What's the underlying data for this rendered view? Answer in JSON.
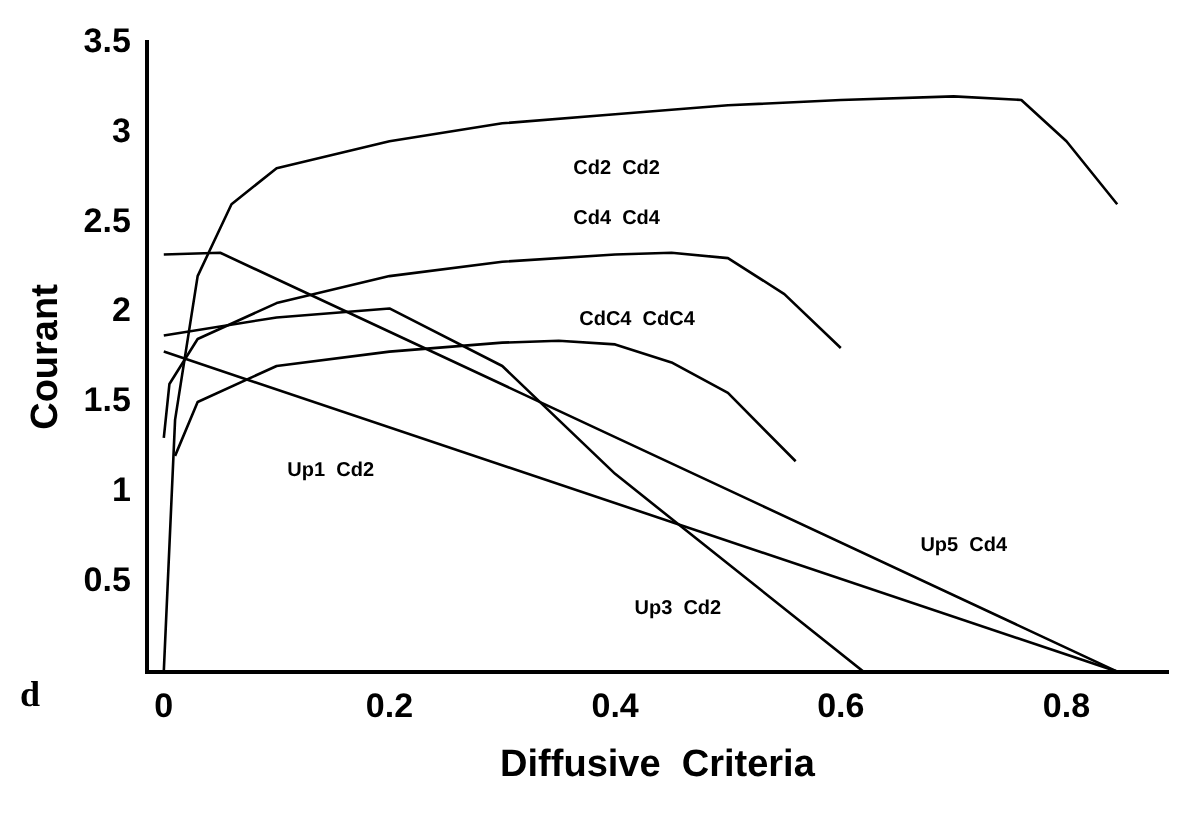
{
  "chart_data": {
    "type": "line",
    "xlabel": "Diffusive  Criteria",
    "ylabel": "Courant",
    "xlim": [
      -0.015,
      0.89
    ],
    "xticks": [
      0,
      0.2,
      0.4,
      0.6,
      0.8
    ],
    "ylim": [
      0,
      3.5
    ],
    "yticks": [
      0.5,
      1,
      1.5,
      2,
      2.5,
      3,
      3.5
    ],
    "grid": false,
    "legend": false,
    "marker": "none",
    "line_style": "solid",
    "series": [
      {
        "name": "Cd2  Cd2",
        "color": "#000000",
        "x": [
          0,
          0.01,
          0.03,
          0.06,
          0.1,
          0.2,
          0.3,
          0.4,
          0.5,
          0.6,
          0.7,
          0.76,
          0.8,
          0.845
        ],
        "values": [
          0,
          1.4,
          2.2,
          2.6,
          2.8,
          2.95,
          3.05,
          3.1,
          3.15,
          3.18,
          3.2,
          3.18,
          2.95,
          2.6
        ]
      },
      {
        "name": "Cd4  Cd4",
        "color": "#000000",
        "x": [
          0,
          0.005,
          0.03,
          0.1,
          0.2,
          0.3,
          0.4,
          0.45,
          0.5,
          0.55,
          0.6
        ],
        "values": [
          1.3,
          1.6,
          1.85,
          2.05,
          2.2,
          2.28,
          2.32,
          2.33,
          2.3,
          2.1,
          1.8
        ]
      },
      {
        "name": "CdC4  CdC4",
        "color": "#000000",
        "x": [
          0.01,
          0.03,
          0.1,
          0.2,
          0.3,
          0.35,
          0.4,
          0.45,
          0.5,
          0.56
        ],
        "values": [
          1.2,
          1.5,
          1.7,
          1.78,
          1.83,
          1.84,
          1.82,
          1.72,
          1.55,
          1.17
        ]
      },
      {
        "name": "Up3  Cd2",
        "color": "#000000",
        "x": [
          0,
          0.1,
          0.2,
          0.3,
          0.4,
          0.62
        ],
        "values": [
          1.87,
          1.97,
          2.02,
          1.7,
          1.1,
          0
        ]
      },
      {
        "name": "Up5  Cd4",
        "color": "#000000",
        "x": [
          0,
          0.05,
          0.845
        ],
        "values": [
          2.32,
          2.33,
          0
        ]
      },
      {
        "name": "Up1  Cd2",
        "color": "#000000",
        "x": [
          0,
          0.845
        ],
        "values": [
          1.78,
          0
        ]
      }
    ],
    "annotations": [
      "d"
    ]
  }
}
